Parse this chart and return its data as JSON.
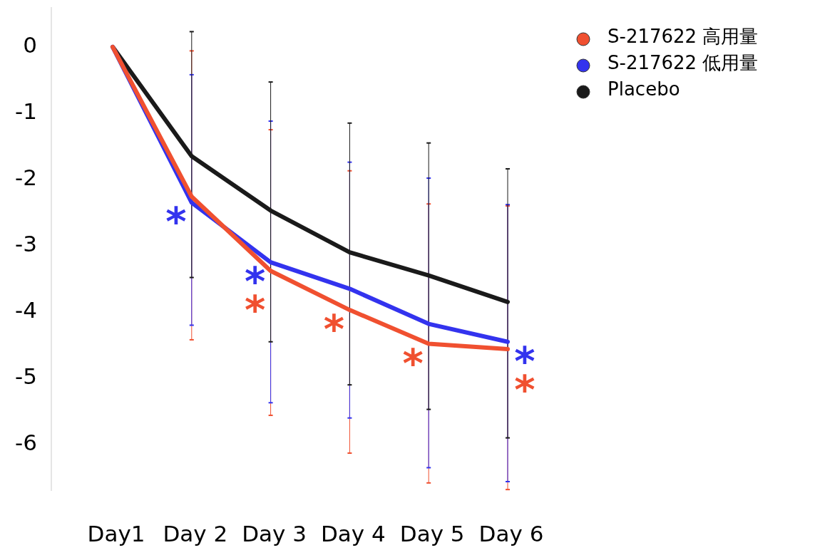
{
  "chart_data": {
    "type": "line",
    "categories": [
      "Day1",
      "Day 2",
      "Day 3",
      "Day 4",
      "Day 5",
      "Day 6"
    ],
    "series": [
      {
        "name": "S-217622 高用量",
        "color": "#f05030",
        "values": [
          0,
          -2.26,
          -3.38,
          -3.97,
          -4.48,
          -4.56
        ],
        "errors": [
          null,
          [
            -4.42,
            -0.06
          ],
          [
            -5.56,
            -1.25
          ],
          [
            -6.13,
            -1.87
          ],
          [
            -6.58,
            -2.37
          ],
          [
            -6.68,
            -2.4
          ]
        ]
      },
      {
        "name": "S-217622 低用量",
        "color": "#3333ee",
        "values": [
          0,
          -2.35,
          -3.25,
          -3.65,
          -4.18,
          -4.45
        ],
        "errors": [
          null,
          [
            -4.2,
            -0.42
          ],
          [
            -5.37,
            -1.12
          ],
          [
            -5.6,
            -1.74
          ],
          [
            -6.35,
            -1.98
          ],
          [
            -6.56,
            -2.38
          ]
        ]
      },
      {
        "name": "Placebo",
        "color": "#1a1a1a",
        "values": [
          0,
          -1.65,
          -2.47,
          -3.1,
          -3.45,
          -3.85
        ],
        "errors": [
          null,
          [
            -3.48,
            0.23
          ],
          [
            -4.45,
            -0.53
          ],
          [
            -5.1,
            -1.15
          ],
          [
            -5.47,
            -1.45
          ],
          [
            -5.9,
            -1.84
          ]
        ]
      }
    ],
    "ylim": [
      -6.7,
      0.6
    ],
    "yticks": [
      0,
      -1,
      -2,
      -3,
      -4,
      -5,
      -6
    ],
    "legend": "top right",
    "annotations": [
      {
        "text": "*",
        "x": "Day 2",
        "y": -2.35
      },
      {
        "text": "*",
        "x": "Day 3",
        "y": -3.25
      },
      {
        "text": "*",
        "x": "Day 3",
        "y": -3.38
      },
      {
        "text": "*",
        "x": "Day 4",
        "y": -3.97
      },
      {
        "text": "*",
        "x": "Day 5",
        "y": -4.48
      },
      {
        "text": "*",
        "x": "Day 6",
        "y": -4.45
      },
      {
        "text": "*",
        "x": "Day 6",
        "y": -4.56
      }
    ]
  }
}
